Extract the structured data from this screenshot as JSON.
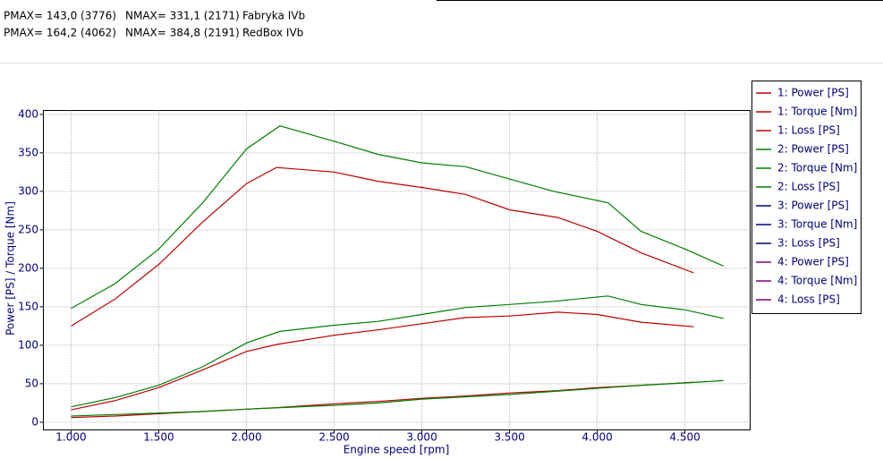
{
  "chart_data": {
    "type": "line",
    "annotations": [
      [
        "PMAX= 143,0 (3776)",
        "NMAX= 331,1 (2171)",
        "Fabryka IVb"
      ],
      [
        "PMAX= 164,2 (4062)",
        "NMAX= 384,8 (2191)",
        "RedBox IVb"
      ]
    ],
    "x_label": "Engine speed [rpm]",
    "y_label": "Power [PS] / Torque [Nm]",
    "xlim": [
      842,
      4872
    ],
    "ylim": [
      -10,
      405
    ],
    "xticks": [
      {
        "value": 1000,
        "label": "1.000"
      },
      {
        "value": 1500,
        "label": "1.500"
      },
      {
        "value": 2000,
        "label": "2.000"
      },
      {
        "value": 2500,
        "label": "2.500"
      },
      {
        "value": 3000,
        "label": "3.000"
      },
      {
        "value": 3500,
        "label": "3.500"
      },
      {
        "value": 4000,
        "label": "4.000"
      },
      {
        "value": 4500,
        "label": "4.500"
      }
    ],
    "yticks": [
      0,
      50,
      100,
      150,
      200,
      250,
      300,
      350,
      400
    ],
    "grid": true,
    "legend": "right",
    "series": [
      {
        "name": "1: Power [PS]",
        "color": "#c00000",
        "x": [
          1000,
          1250,
          1500,
          1750,
          2000,
          2171,
          2500,
          2750,
          3000,
          3250,
          3500,
          3776,
          4000,
          4250,
          4550
        ],
        "values": [
          16,
          28,
          45,
          68,
          92,
          101,
          113,
          120,
          128,
          136,
          138,
          143,
          140,
          130,
          124
        ]
      },
      {
        "name": "1: Torque [Nm]",
        "color": "#c00000",
        "x": [
          1000,
          1250,
          1500,
          1750,
          2000,
          2171,
          2500,
          2750,
          3000,
          3250,
          3500,
          3776,
          4000,
          4250,
          4550
        ],
        "values": [
          125,
          160,
          205,
          260,
          310,
          331,
          325,
          313,
          305,
          296,
          276,
          266,
          248,
          220,
          194
        ]
      },
      {
        "name": "1: Loss [PS]",
        "color": "#c00000",
        "x": [
          1000,
          1250,
          1500,
          1750,
          2000,
          2171,
          2500,
          2750,
          3000,
          3250,
          3500,
          3776,
          4000,
          4250,
          4550
        ],
        "values": [
          6,
          8,
          11,
          14,
          17,
          19,
          24,
          27,
          31,
          34,
          38,
          41,
          45,
          48,
          52
        ]
      },
      {
        "name": "2: Power [PS]",
        "color": "#008000",
        "x": [
          1000,
          1250,
          1500,
          1750,
          2000,
          2191,
          2500,
          2750,
          3000,
          3250,
          3500,
          3750,
          4062,
          4250,
          4500,
          4720
        ],
        "values": [
          20,
          32,
          48,
          72,
          103,
          118,
          126,
          131,
          140,
          149,
          153,
          157,
          164,
          153,
          146,
          135
        ]
      },
      {
        "name": "2: Torque [Nm]",
        "color": "#008000",
        "x": [
          1000,
          1250,
          1500,
          1750,
          2000,
          2191,
          2500,
          2750,
          3000,
          3250,
          3500,
          3750,
          4062,
          4250,
          4500,
          4720
        ],
        "values": [
          148,
          180,
          225,
          285,
          355,
          385,
          365,
          348,
          337,
          332,
          316,
          300,
          285,
          248,
          225,
          203
        ]
      },
      {
        "name": "2: Loss [PS]",
        "color": "#008000",
        "x": [
          1000,
          1250,
          1500,
          1750,
          2000,
          2191,
          2500,
          2750,
          3000,
          3250,
          3500,
          3750,
          4062,
          4250,
          4500,
          4720
        ],
        "values": [
          8,
          10,
          12,
          14,
          17,
          19,
          22,
          25,
          30,
          33,
          36,
          40,
          45,
          48,
          51,
          54
        ]
      },
      {
        "name": "3: Power [PS]",
        "color": "#000080",
        "x": [],
        "values": []
      },
      {
        "name": "3: Torque [Nm]",
        "color": "#000080",
        "x": [],
        "values": []
      },
      {
        "name": "3: Loss [PS]",
        "color": "#000080",
        "x": [],
        "values": []
      },
      {
        "name": "4: Power [PS]",
        "color": "#800080",
        "x": [],
        "values": []
      },
      {
        "name": "4: Torque [Nm]",
        "color": "#800080",
        "x": [],
        "values": []
      },
      {
        "name": "4: Loss [PS]",
        "color": "#800080",
        "x": [],
        "values": []
      }
    ]
  }
}
